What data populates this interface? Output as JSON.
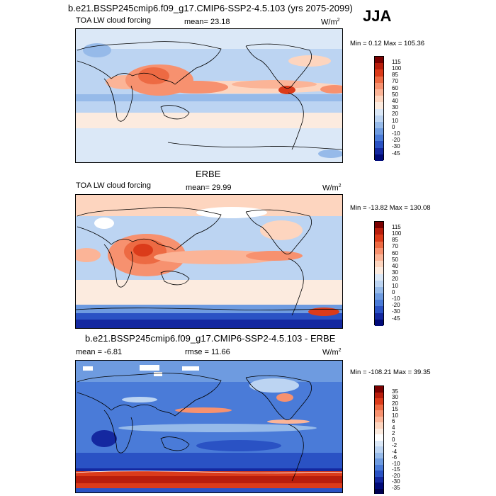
{
  "header": {
    "title": "b.e21.BSSP245cmip6.f09_g17.CMIP6-SSP2-4.5.103 (yrs 2075-2099)",
    "season": "JJA"
  },
  "panels": [
    {
      "title": "",
      "left_label": "TOA LW cloud forcing",
      "stat_label": "mean=  23.18",
      "units_base": "W/m",
      "units_exp": "2",
      "minmax": "Min =  0.12 Max = 105.36",
      "colorbar": {
        "labels": [
          "115",
          "100",
          "85",
          "70",
          "60",
          "50",
          "40",
          "30",
          "20",
          "10",
          "0",
          "-10",
          "-20",
          "-30",
          "-45"
        ],
        "colors": [
          "#7a0000",
          "#b81d0c",
          "#db3b1a",
          "#ed6a43",
          "#f7916f",
          "#fbb497",
          "#fdd5bf",
          "#fcebdf",
          "#dbe8f7",
          "#bcd4f2",
          "#96bae9",
          "#6e9be0",
          "#4a7bd8",
          "#2a52c4",
          "#1428a0",
          "#000a78"
        ]
      }
    },
    {
      "title": "ERBE",
      "left_label": "TOA LW cloud forcing",
      "stat_label": "mean=  29.99",
      "units_base": "W/m",
      "units_exp": "2",
      "minmax": "Min = -13.82 Max = 130.08",
      "colorbar": {
        "labels": [
          "115",
          "100",
          "85",
          "70",
          "60",
          "50",
          "40",
          "30",
          "20",
          "10",
          "0",
          "-10",
          "-20",
          "-30",
          "-45"
        ],
        "colors": [
          "#7a0000",
          "#b81d0c",
          "#db3b1a",
          "#ed6a43",
          "#f7916f",
          "#fbb497",
          "#fdd5bf",
          "#fcebdf",
          "#dbe8f7",
          "#bcd4f2",
          "#96bae9",
          "#6e9be0",
          "#4a7bd8",
          "#2a52c4",
          "#1428a0",
          "#000a78"
        ]
      }
    },
    {
      "title": "b.e21.BSSP245cmip6.f09_g17.CMIP6-SSP2-4.5.103 - ERBE",
      "left_label": "mean =  -6.81",
      "stat_label": "rmse =  11.66",
      "units_base": "W/m",
      "units_exp": "2",
      "minmax": "Min = -108.21 Max =  39.35",
      "colorbar": {
        "labels": [
          "35",
          "30",
          "20",
          "15",
          "10",
          "6",
          "4",
          "2",
          "0",
          "-2",
          "-4",
          "-6",
          "-10",
          "-15",
          "-20",
          "-30",
          "-35"
        ],
        "colors": [
          "#7a0000",
          "#b81d0c",
          "#db3b1a",
          "#ed6a43",
          "#f7916f",
          "#fbb497",
          "#fdd5bf",
          "#fcebdf",
          "#ffffff",
          "#dbe8f7",
          "#bcd4f2",
          "#96bae9",
          "#6e9be0",
          "#4a7bd8",
          "#2a52c4",
          "#1428a0",
          "#000a78",
          "#000050"
        ]
      }
    }
  ]
}
